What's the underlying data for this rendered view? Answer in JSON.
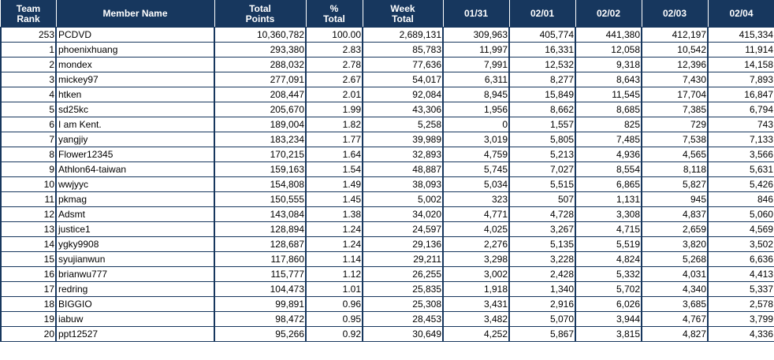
{
  "headers": {
    "rank": "Team Rank",
    "name": "Member Name",
    "points": "Total Points",
    "pct": "% Total",
    "week": "Week Total",
    "d1": "01/31",
    "d2": "02/01",
    "d3": "02/02",
    "d4": "02/03",
    "d5": "02/04"
  },
  "rows": [
    {
      "rank": "253",
      "name": "PCDVD",
      "points": "10,360,782",
      "pct": "100.00",
      "week": "2,689,131",
      "d1": "309,963",
      "d2": "405,774",
      "d3": "441,380",
      "d4": "412,197",
      "d5": "415,334"
    },
    {
      "rank": "1",
      "name": "phoenixhuang",
      "points": "293,380",
      "pct": "2.83",
      "week": "85,783",
      "d1": "11,997",
      "d2": "16,331",
      "d3": "12,058",
      "d4": "10,542",
      "d5": "11,914"
    },
    {
      "rank": "2",
      "name": "mondex",
      "points": "288,032",
      "pct": "2.78",
      "week": "77,636",
      "d1": "7,991",
      "d2": "12,532",
      "d3": "9,318",
      "d4": "12,396",
      "d5": "14,158"
    },
    {
      "rank": "3",
      "name": "mickey97",
      "points": "277,091",
      "pct": "2.67",
      "week": "54,017",
      "d1": "6,311",
      "d2": "8,277",
      "d3": "8,643",
      "d4": "7,430",
      "d5": "7,893"
    },
    {
      "rank": "4",
      "name": "htken",
      "points": "208,447",
      "pct": "2.01",
      "week": "92,084",
      "d1": "8,945",
      "d2": "15,849",
      "d3": "11,545",
      "d4": "17,704",
      "d5": "16,847"
    },
    {
      "rank": "5",
      "name": "sd25kc",
      "points": "205,670",
      "pct": "1.99",
      "week": "43,306",
      "d1": "1,956",
      "d2": "8,662",
      "d3": "8,685",
      "d4": "7,385",
      "d5": "6,794"
    },
    {
      "rank": "6",
      "name": "I am Kent.",
      "points": "189,004",
      "pct": "1.82",
      "week": "5,258",
      "d1": "0",
      "d2": "1,557",
      "d3": "825",
      "d4": "729",
      "d5": "743"
    },
    {
      "rank": "7",
      "name": "yangjiy",
      "points": "183,234",
      "pct": "1.77",
      "week": "39,989",
      "d1": "3,019",
      "d2": "5,805",
      "d3": "7,485",
      "d4": "7,538",
      "d5": "7,133"
    },
    {
      "rank": "8",
      "name": "Flower12345",
      "points": "170,215",
      "pct": "1.64",
      "week": "32,893",
      "d1": "4,759",
      "d2": "5,213",
      "d3": "4,936",
      "d4": "4,565",
      "d5": "3,566"
    },
    {
      "rank": "9",
      "name": "Athlon64-taiwan",
      "points": "159,163",
      "pct": "1.54",
      "week": "48,887",
      "d1": "5,745",
      "d2": "7,027",
      "d3": "8,554",
      "d4": "8,118",
      "d5": "5,631"
    },
    {
      "rank": "10",
      "name": "wwjyyc",
      "points": "154,808",
      "pct": "1.49",
      "week": "38,093",
      "d1": "5,034",
      "d2": "5,515",
      "d3": "6,865",
      "d4": "5,827",
      "d5": "5,426"
    },
    {
      "rank": "11",
      "name": "pkmag",
      "points": "150,555",
      "pct": "1.45",
      "week": "5,002",
      "d1": "323",
      "d2": "507",
      "d3": "1,131",
      "d4": "945",
      "d5": "846"
    },
    {
      "rank": "12",
      "name": "Adsmt",
      "points": "143,084",
      "pct": "1.38",
      "week": "34,020",
      "d1": "4,771",
      "d2": "4,728",
      "d3": "3,308",
      "d4": "4,837",
      "d5": "5,060"
    },
    {
      "rank": "13",
      "name": "justice1",
      "points": "128,894",
      "pct": "1.24",
      "week": "24,597",
      "d1": "4,025",
      "d2": "3,267",
      "d3": "4,715",
      "d4": "2,659",
      "d5": "4,569"
    },
    {
      "rank": "14",
      "name": "ygky9908",
      "points": "128,687",
      "pct": "1.24",
      "week": "29,136",
      "d1": "2,276",
      "d2": "5,135",
      "d3": "5,519",
      "d4": "3,820",
      "d5": "3,502"
    },
    {
      "rank": "15",
      "name": "syujianwun",
      "points": "117,860",
      "pct": "1.14",
      "week": "29,211",
      "d1": "3,298",
      "d2": "3,228",
      "d3": "4,824",
      "d4": "5,268",
      "d5": "6,636"
    },
    {
      "rank": "16",
      "name": "brianwu777",
      "points": "115,777",
      "pct": "1.12",
      "week": "26,255",
      "d1": "3,002",
      "d2": "2,428",
      "d3": "5,332",
      "d4": "4,031",
      "d5": "4,413"
    },
    {
      "rank": "17",
      "name": "redring",
      "points": "104,473",
      "pct": "1.01",
      "week": "25,835",
      "d1": "1,918",
      "d2": "1,340",
      "d3": "5,702",
      "d4": "4,340",
      "d5": "5,337"
    },
    {
      "rank": "18",
      "name": "BIGGIO",
      "points": "99,891",
      "pct": "0.96",
      "week": "25,308",
      "d1": "3,431",
      "d2": "2,916",
      "d3": "6,026",
      "d4": "3,685",
      "d5": "2,578"
    },
    {
      "rank": "19",
      "name": "iabuw",
      "points": "98,472",
      "pct": "0.95",
      "week": "28,453",
      "d1": "3,482",
      "d2": "5,070",
      "d3": "3,944",
      "d4": "4,767",
      "d5": "3,799"
    },
    {
      "rank": "20",
      "name": "ppt12527",
      "points": "95,266",
      "pct": "0.92",
      "week": "30,649",
      "d1": "4,252",
      "d2": "5,867",
      "d3": "3,815",
      "d4": "4,827",
      "d5": "4,336"
    }
  ]
}
